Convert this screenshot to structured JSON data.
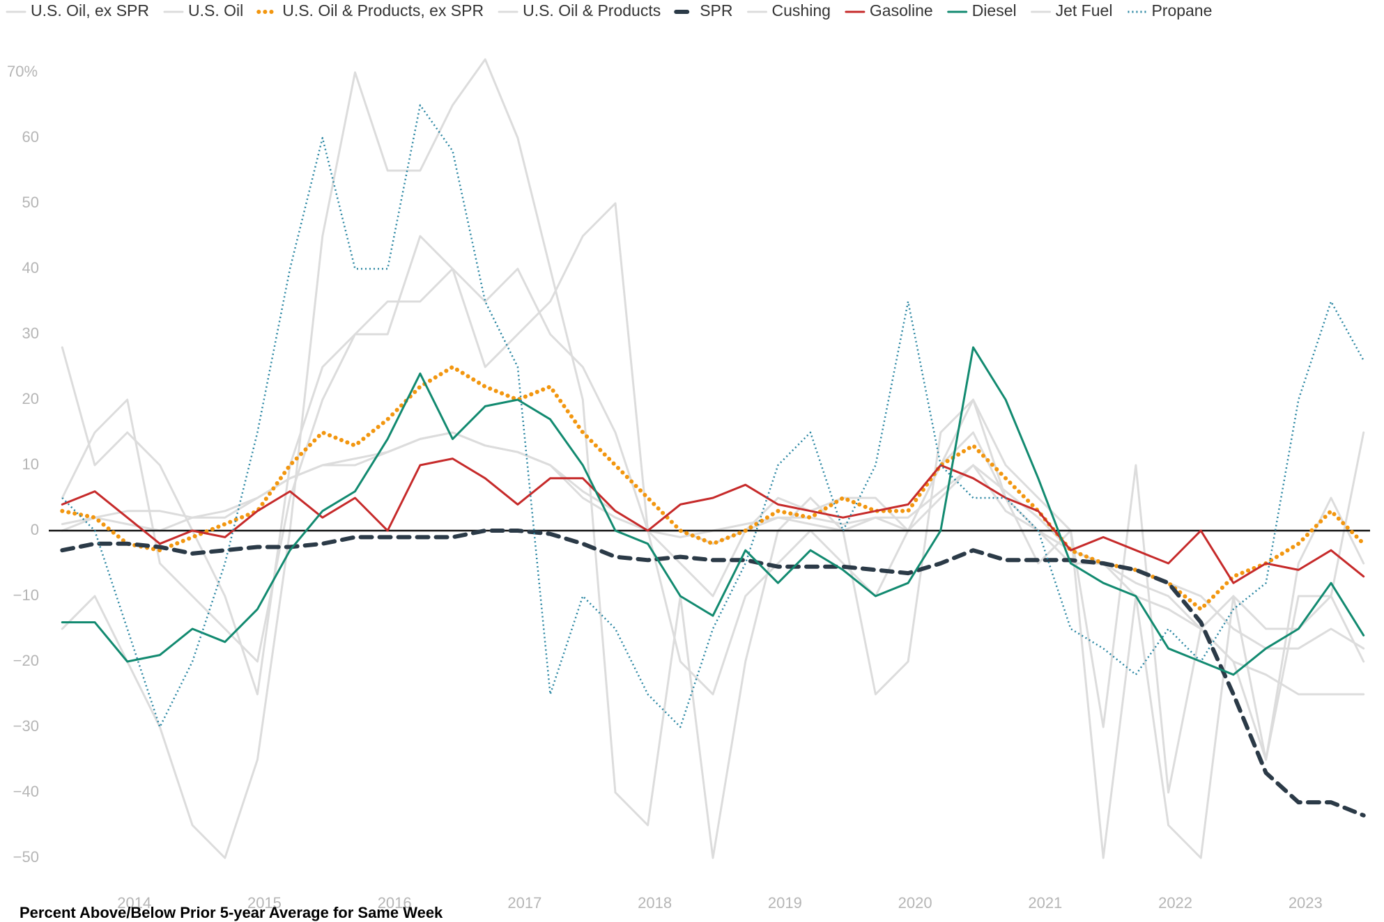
{
  "chart_data": {
    "type": "line",
    "note": "Percent Above/Below Prior 5-year Average for Same Week",
    "x": [
      2013.5,
      2013.75,
      2014,
      2014.25,
      2014.5,
      2014.75,
      2015,
      2015.25,
      2015.5,
      2015.75,
      2016,
      2016.25,
      2016.5,
      2016.75,
      2017,
      2017.25,
      2017.5,
      2017.75,
      2018,
      2018.25,
      2018.5,
      2018.75,
      2019,
      2019.25,
      2019.5,
      2019.75,
      2020,
      2020.25,
      2020.5,
      2020.75,
      2021,
      2021.25,
      2021.5,
      2021.75,
      2022,
      2022.25,
      2022.5,
      2022.75,
      2023,
      2023.25,
      2023.5
    ],
    "xlim": [
      2013.45,
      2023.55
    ],
    "xticks": [
      2014,
      2015,
      2016,
      2017,
      2018,
      2019,
      2020,
      2021,
      2022,
      2023
    ],
    "ylim": [
      -55,
      75
    ],
    "yticks": [
      {
        "value": -50,
        "label": "−50"
      },
      {
        "value": -40,
        "label": "−40"
      },
      {
        "value": -30,
        "label": "−30"
      },
      {
        "value": -20,
        "label": "−20"
      },
      {
        "value": -10,
        "label": "−10"
      },
      0,
      10,
      20,
      30,
      40,
      50,
      60,
      {
        "value": 70,
        "label": "70%"
      }
    ],
    "legend": "top",
    "series": [
      {
        "name": "U.S. Oil, ex SPR",
        "color": "#dcdcdc",
        "style": "solid",
        "values": [
          28,
          10,
          15,
          10,
          0,
          -10,
          -25,
          10,
          25,
          30,
          30,
          45,
          40,
          35,
          40,
          30,
          25,
          15,
          0,
          -5,
          -10,
          0,
          5,
          3,
          5,
          5,
          0,
          10,
          15,
          5,
          0,
          -5,
          -5,
          -10,
          -12,
          -15,
          -10,
          -15,
          -15,
          -10,
          15
        ]
      },
      {
        "name": "U.S. Oil",
        "color": "#dcdcdc",
        "style": "solid",
        "values": [
          0,
          2,
          3,
          3,
          2,
          2,
          5,
          8,
          10,
          11,
          12,
          14,
          15,
          13,
          12,
          10,
          5,
          2,
          0,
          0,
          -2,
          0,
          2,
          1,
          0,
          2,
          0,
          5,
          10,
          3,
          0,
          -3,
          -5,
          -8,
          -10,
          -15,
          -20,
          -22,
          -25,
          -25,
          -25
        ]
      },
      {
        "name": "U.S. Oil & Products, ex SPR",
        "color": "#f2960f",
        "style": "dotted",
        "values": [
          3,
          2,
          -2,
          -3,
          -1,
          1,
          3,
          10,
          15,
          13,
          17,
          22,
          25,
          22,
          20,
          22,
          15,
          10,
          5,
          0,
          -2,
          0,
          3,
          2,
          5,
          3,
          3,
          10,
          13,
          8,
          3,
          -3,
          -5,
          -6,
          -8,
          -12,
          -7,
          -5,
          -2,
          3,
          -2
        ]
      },
      {
        "name": "U.S. Oil & Products",
        "color": "#dcdcdc",
        "style": "solid",
        "values": [
          1,
          2,
          1,
          0,
          2,
          3,
          5,
          8,
          10,
          10,
          12,
          14,
          15,
          13,
          12,
          10,
          6,
          3,
          0,
          -1,
          0,
          1,
          2,
          2,
          1,
          2,
          2,
          6,
          10,
          6,
          2,
          -3,
          -5,
          -6,
          -8,
          -10,
          -15,
          -18,
          -18,
          -15,
          -18
        ]
      },
      {
        "name": "SPR",
        "color": "#2b3a47",
        "style": "dashed",
        "values": [
          -3,
          -2,
          -2,
          -2.5,
          -3.5,
          -3,
          -2.5,
          -2.5,
          -2,
          -1,
          -1,
          -1,
          -1,
          0,
          0,
          -0.5,
          -2,
          -4,
          -4.5,
          -4,
          -4.5,
          -4.5,
          -5.5,
          -5.5,
          -5.5,
          -6,
          -6.5,
          -5,
          -3,
          -4.5,
          -4.5,
          -4.5,
          -5,
          -6,
          -8,
          -14,
          -25,
          -37,
          -41.5,
          -41.5,
          -43.5
        ]
      },
      {
        "name": "Cushing",
        "color": "#dcdcdc",
        "style": "solid",
        "values": [
          -15,
          -10,
          -20,
          -30,
          -45,
          -50,
          -35,
          0,
          45,
          70,
          55,
          55,
          65,
          72,
          60,
          40,
          20,
          -40,
          -45,
          -10,
          -50,
          -20,
          0,
          5,
          0,
          -25,
          -20,
          15,
          20,
          5,
          -5,
          0,
          -50,
          -10,
          -45,
          -50,
          -10,
          -35,
          -5,
          5,
          -5
        ]
      },
      {
        "name": "Gasoline",
        "color": "#c62a2a",
        "style": "solid",
        "values": [
          4,
          6,
          2,
          -2,
          0,
          -1,
          3,
          6,
          2,
          5,
          0,
          10,
          11,
          8,
          4,
          8,
          8,
          3,
          0,
          4,
          5,
          7,
          4,
          3,
          2,
          3,
          4,
          10,
          8,
          5,
          3,
          -3,
          -1,
          -3,
          -5,
          0,
          -8,
          -5,
          -6,
          -3,
          -7
        ]
      },
      {
        "name": "Diesel",
        "color": "#128a70",
        "style": "solid",
        "values": [
          -14,
          -14,
          -20,
          -19,
          -15,
          -17,
          -12,
          -3,
          3,
          6,
          14,
          24,
          14,
          19,
          20,
          17,
          10,
          0,
          -2,
          -10,
          -13,
          -3,
          -8,
          -3,
          -6,
          -10,
          -8,
          0,
          28,
          20,
          8,
          -5,
          -8,
          -10,
          -18,
          -20,
          -22,
          -18,
          -15,
          -8,
          -16
        ]
      },
      {
        "name": "Jet Fuel",
        "color": "#dcdcdc",
        "style": "solid",
        "values": [
          5,
          15,
          20,
          -5,
          -10,
          -15,
          -20,
          5,
          20,
          30,
          35,
          35,
          40,
          25,
          30,
          35,
          45,
          50,
          0,
          -20,
          -25,
          -10,
          -5,
          0,
          -5,
          -10,
          0,
          10,
          20,
          10,
          5,
          0,
          -30,
          10,
          -40,
          -15,
          -20,
          -35,
          -10,
          -10,
          -20
        ]
      },
      {
        "name": "Propane",
        "color": "#2a86a2",
        "style": "dotted-thin",
        "values": [
          5,
          0,
          -15,
          -30,
          -20,
          -5,
          15,
          40,
          60,
          40,
          40,
          65,
          58,
          35,
          25,
          -25,
          -10,
          -15,
          -25,
          -30,
          -15,
          -5,
          10,
          15,
          0,
          10,
          35,
          10,
          5,
          5,
          0,
          -15,
          -18,
          -22,
          -15,
          -20,
          -12,
          -8,
          20,
          35,
          26
        ]
      }
    ]
  }
}
